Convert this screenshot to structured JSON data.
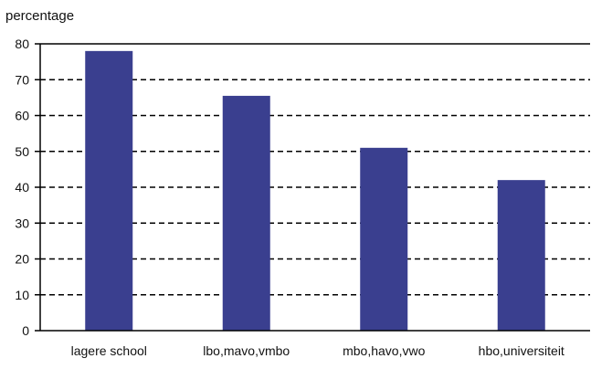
{
  "chart_data": {
    "type": "bar",
    "ylabel": "percentage",
    "xlabel": "",
    "categories": [
      "lagere school",
      "lbo,mavo,vmbo",
      "mbo,havo,vwo",
      "hbo,universiteit"
    ],
    "values": [
      78,
      65.5,
      51,
      42
    ],
    "ylim": [
      0,
      80
    ],
    "yticks": [
      0,
      10,
      20,
      30,
      40,
      50,
      60,
      70,
      80
    ],
    "grid": "dashed horizontal",
    "bar_color": "#3a3f8f",
    "axis_color": "#000000"
  }
}
